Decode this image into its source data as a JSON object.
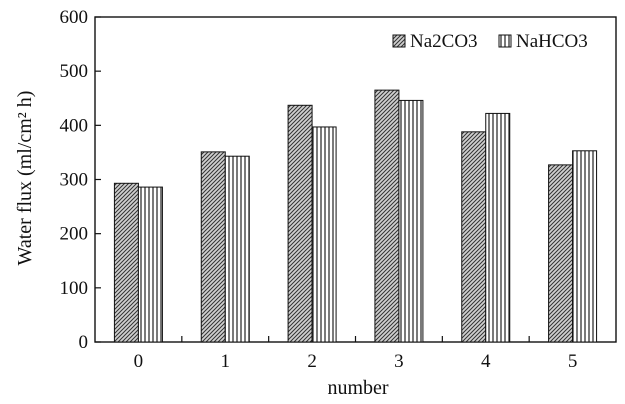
{
  "chart_data": {
    "type": "bar",
    "title": "",
    "xlabel": "number",
    "ylabel": "Water flux (ml/cm² h)",
    "categories": [
      "0",
      "1",
      "2",
      "3",
      "4",
      "5"
    ],
    "series": [
      {
        "name": "Na2CO3",
        "values": [
          293,
          351,
          437,
          465,
          388,
          327
        ],
        "pattern": "diagonal-hatch"
      },
      {
        "name": "NaHCO3",
        "values": [
          286,
          343,
          397,
          446,
          422,
          353
        ],
        "pattern": "vertical-hatch"
      }
    ],
    "ylim": [
      0,
      600
    ],
    "yticks": [
      "0",
      "100",
      "200",
      "300",
      "400",
      "500",
      "600"
    ],
    "legend": "top-right",
    "grid": false,
    "colors": {
      "axis": "#111111",
      "bar_fill": "#d0d0d0",
      "hatch": "#333333"
    }
  }
}
